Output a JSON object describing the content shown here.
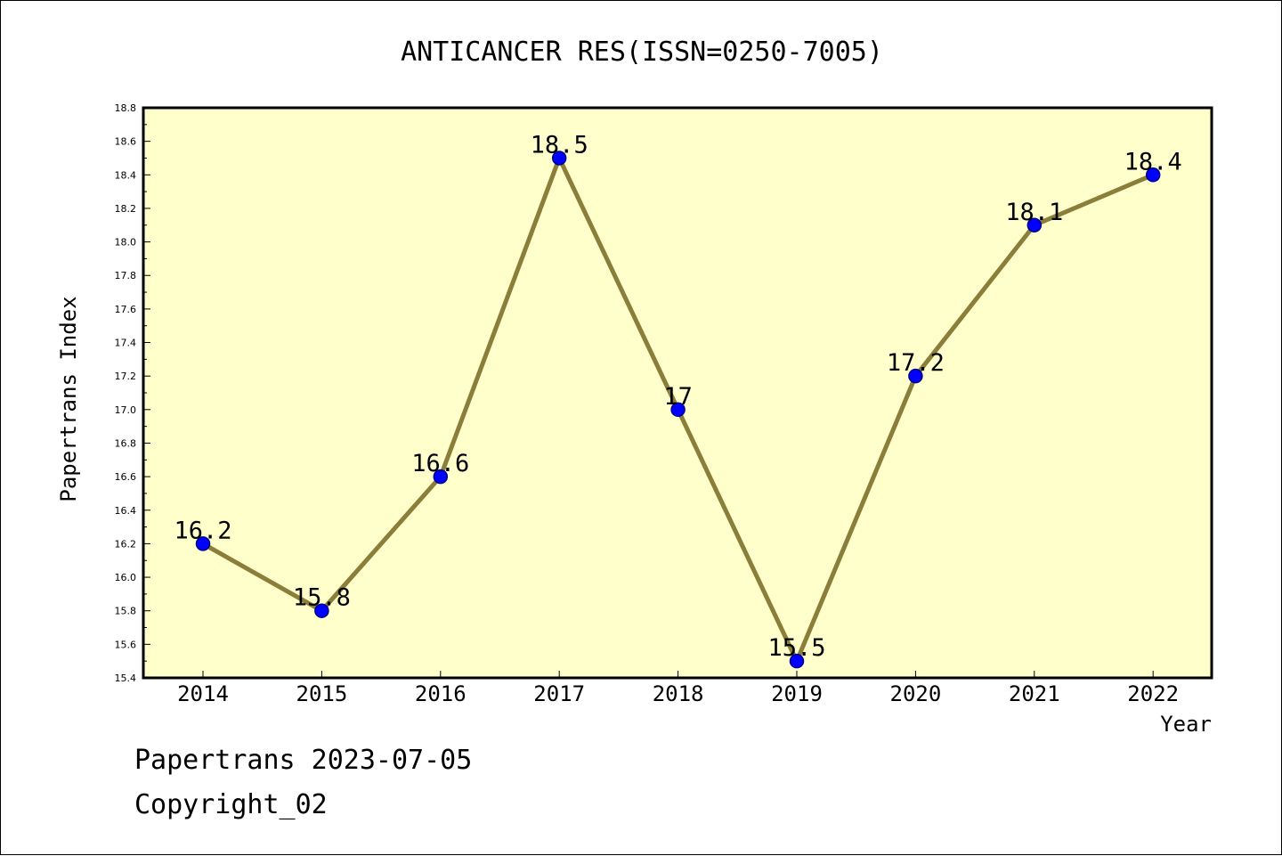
{
  "footer": {
    "line1": "Papertrans 2023-07-05",
    "line2": "Copyright_02"
  },
  "colors": {
    "plot_background": "#ffffcc",
    "line": "#8b7d3a",
    "marker": "#0000ff",
    "marker_edge": "#00008b",
    "axis": "#000000"
  },
  "chart_data": {
    "type": "line",
    "title": "ANTICANCER RES(ISSN=0250-7005)",
    "xlabel": "Year",
    "ylabel": "Papertrans Index",
    "categories": [
      "2014",
      "2015",
      "2016",
      "2017",
      "2018",
      "2019",
      "2020",
      "2021",
      "2022"
    ],
    "series": [
      {
        "values": [
          16.2,
          15.8,
          16.6,
          18.5,
          17.0,
          15.5,
          17.2,
          18.1,
          18.4
        ],
        "labels": [
          "16.2",
          "15.8",
          "16.6",
          "18.5",
          "17",
          "15.5",
          "17.2",
          "18.1",
          "18.4"
        ]
      }
    ],
    "ylim": [
      15.4,
      18.8
    ],
    "yticks": [
      "15.4",
      "15.6",
      "15.8",
      "16.0",
      "16.2",
      "16.4",
      "16.6",
      "16.8",
      "17.0",
      "17.2",
      "17.4",
      "17.6",
      "17.8",
      "18.0",
      "18.2",
      "18.4",
      "18.6",
      "18.8"
    ],
    "grid": false,
    "legend": "none"
  }
}
